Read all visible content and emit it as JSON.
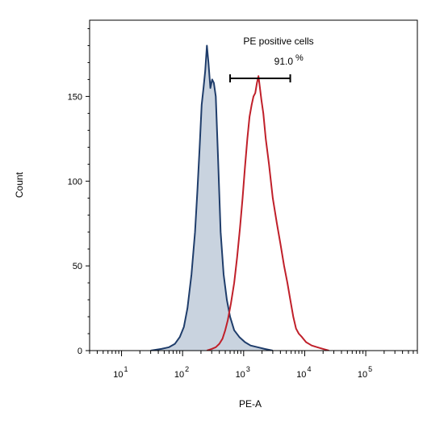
{
  "chart_data": {
    "type": "area",
    "title": "",
    "xlabel": "PE-A",
    "ylabel": "Count",
    "xscale": "log",
    "xlim": [
      3,
      700000
    ],
    "ylim": [
      0,
      195
    ],
    "y_ticks": [
      0,
      50,
      100,
      150
    ],
    "x_tick_labels": [
      {
        "value": 10,
        "base": "10",
        "exp": "1"
      },
      {
        "value": 100,
        "base": "10",
        "exp": "2"
      },
      {
        "value": 1000,
        "base": "10",
        "exp": "3"
      },
      {
        "value": 10000,
        "base": "10",
        "exp": "4"
      },
      {
        "value": 100000,
        "base": "10",
        "exp": "5"
      }
    ],
    "grid": false,
    "annotation": {
      "label": "PE positive cells",
      "value_text": "91.0",
      "unit": "%",
      "gate_range": [
        600,
        5800
      ]
    },
    "series": [
      {
        "color": "#1f3d6b",
        "fill": "#c9d3df",
        "x": [
          30,
          45,
          60,
          75,
          90,
          105,
          120,
          140,
          160,
          175,
          190,
          205,
          220,
          235,
          250,
          265,
          285,
          305,
          325,
          350,
          380,
          420,
          470,
          530,
          600,
          700,
          850,
          1050,
          1300,
          1700,
          2200,
          3000
        ],
        "y": [
          0,
          1,
          2,
          4,
          8,
          14,
          25,
          45,
          70,
          95,
          120,
          145,
          155,
          165,
          180,
          170,
          155,
          160,
          158,
          150,
          115,
          70,
          45,
          30,
          20,
          12,
          8,
          5,
          3,
          2,
          1,
          0
        ]
      },
      {
        "color": "#c0202a",
        "x": [
          250,
          300,
          350,
          400,
          450,
          500,
          550,
          620,
          700,
          780,
          870,
          960,
          1050,
          1150,
          1250,
          1350,
          1450,
          1550,
          1650,
          1750,
          1850,
          1950,
          2100,
          2300,
          2600,
          3000,
          3500,
          4000,
          4600,
          5200,
          5800,
          6500,
          7200,
          8000,
          9000,
          10500,
          13000,
          16000,
          20000,
          25000
        ],
        "y": [
          0,
          1,
          2,
          4,
          7,
          12,
          18,
          28,
          40,
          55,
          72,
          90,
          108,
          125,
          138,
          145,
          150,
          152,
          158,
          162,
          155,
          148,
          140,
          125,
          110,
          90,
          75,
          63,
          50,
          40,
          30,
          20,
          13,
          10,
          8,
          5,
          3,
          2,
          1,
          0
        ]
      }
    ]
  }
}
